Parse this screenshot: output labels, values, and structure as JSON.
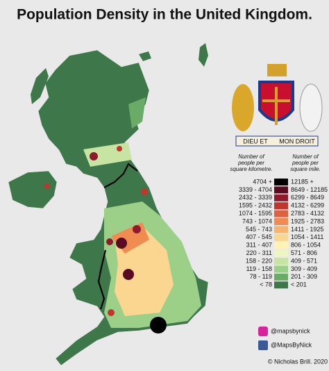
{
  "title": "Population Density in the United Kingdom.",
  "legend": {
    "header_km": [
      "Number of",
      "people per",
      "square kilometre."
    ],
    "header_mile": [
      "Number of",
      "people per",
      "square mile."
    ],
    "rows": [
      {
        "km": "4704 +",
        "mile": "12185 +",
        "color": "#000000"
      },
      {
        "km": "3339 - 4704",
        "mile": "8649 - 12185",
        "color": "#5a0b1f"
      },
      {
        "km": "2432 - 3339",
        "mile": "6299 - 8649",
        "color": "#8e1a2c"
      },
      {
        "km": "1595 - 2432",
        "mile": "4132 - 6299",
        "color": "#c0352c"
      },
      {
        "km": "1074 - 1595",
        "mile": "2783 - 4132",
        "color": "#e0603e"
      },
      {
        "km": "743 - 1074",
        "mile": "1925 - 2783",
        "color": "#f08b52"
      },
      {
        "km": "545 - 743",
        "mile": "1411 - 1925",
        "color": "#f7b46c"
      },
      {
        "km": "407 - 545",
        "mile": "1054 - 1411",
        "color": "#fbd690"
      },
      {
        "km": "311 - 407",
        "mile": "806 - 1054",
        "color": "#fff2b4"
      },
      {
        "km": "220 - 311",
        "mile": "571 - 806",
        "color": "#eef5c4"
      },
      {
        "km": "158 - 220",
        "mile": "409 - 571",
        "color": "#c8e4a2"
      },
      {
        "km": "119 - 158",
        "mile": "309 - 409",
        "color": "#9ccf88"
      },
      {
        "km": "78 - 119",
        "mile": "201 - 309",
        "color": "#6bab68"
      },
      {
        "km": "< 78",
        "mile": "< 201",
        "color": "#3e774a"
      }
    ]
  },
  "motto": [
    "DIEU ET",
    "MON DROIT"
  ],
  "credits": {
    "instagram": "@mapsbynick",
    "facebook": "@MapsByNick",
    "copyright": "© Nicholas Brill. 2020"
  }
}
